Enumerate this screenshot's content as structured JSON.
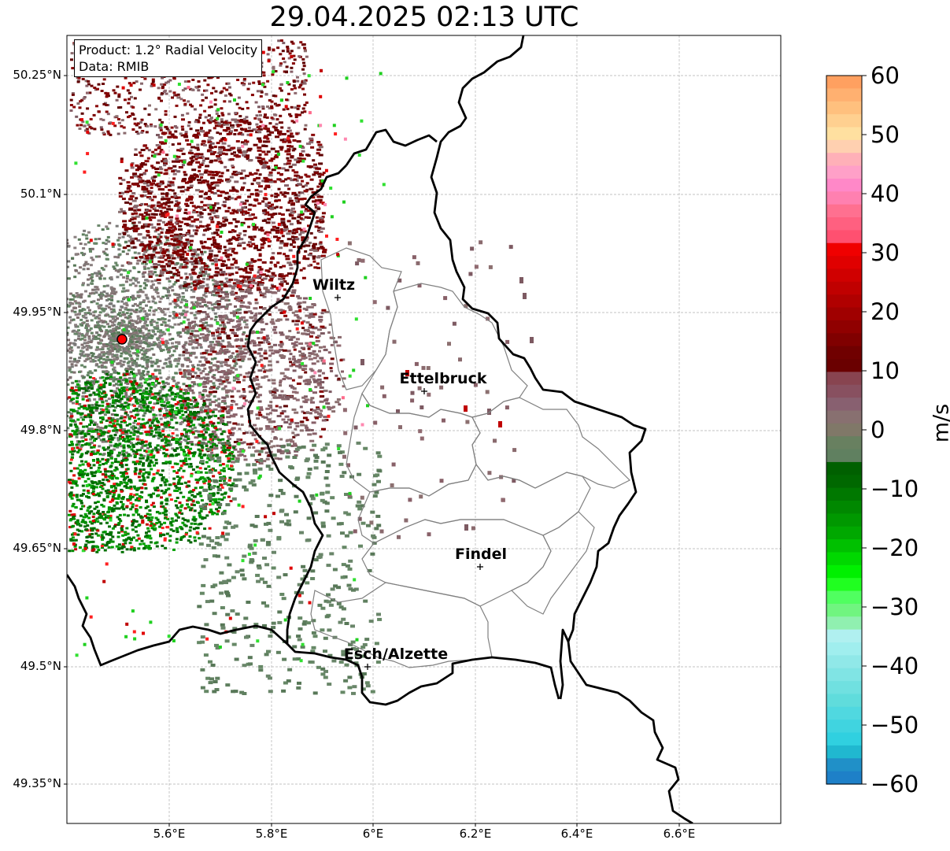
{
  "title": "29.04.2025 02:13 UTC",
  "info": {
    "product": "Product: 1.2° Radial Velocity",
    "data": "Data: RMIB"
  },
  "map": {
    "lat_labels": [
      "50.25°N",
      "50.1°N",
      "49.95°N",
      "49.8°N",
      "49.65°N",
      "49.5°N",
      "49.35°N"
    ],
    "lon_labels": [
      "5.6°E",
      "5.8°E",
      "6°E",
      "6.2°E",
      "6.4°E",
      "6.6°E"
    ],
    "cities": [
      {
        "name": "Wiltz"
      },
      {
        "name": "Ettelbruck"
      },
      {
        "name": "Findel"
      },
      {
        "name": "Esch/Alzette"
      }
    ],
    "radar_marker_color": "#ff0000",
    "border_color": "#000000",
    "canton_color": "#808080",
    "grid_color": "#b0b0b0"
  },
  "colorbar": {
    "label": "m/s",
    "ticks": [
      "60",
      "50",
      "40",
      "30",
      "20",
      "10",
      "0",
      "−10",
      "−20",
      "−30",
      "−40",
      "−50",
      "−60"
    ],
    "range": [
      -60,
      60
    ]
  }
}
